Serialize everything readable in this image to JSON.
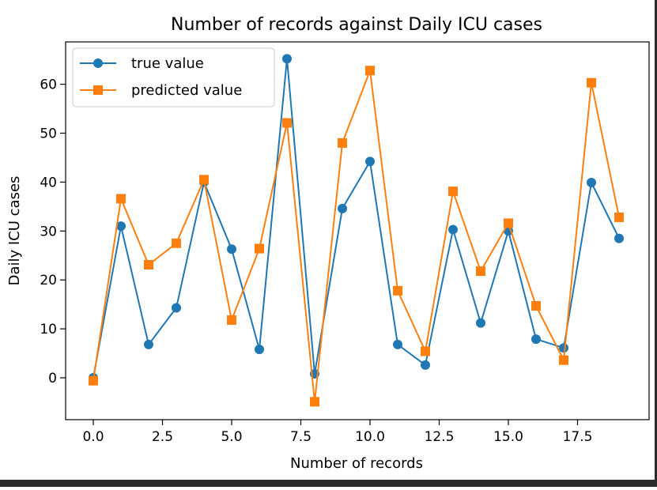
{
  "chart_data": {
    "type": "line",
    "title": "Number of records against Daily ICU cases",
    "xlabel": "Number of records",
    "ylabel": "Daily ICU cases",
    "xlim": [
      -1,
      20
    ],
    "ylim": [
      -8,
      69
    ],
    "xticks": [
      0.0,
      2.5,
      5.0,
      7.5,
      10.0,
      12.5,
      15.0,
      17.5
    ],
    "xtick_labels": [
      "0.0",
      "2.5",
      "5.0",
      "7.5",
      "10.0",
      "12.5",
      "15.0",
      "17.5"
    ],
    "yticks": [
      0,
      10,
      20,
      30,
      40,
      50,
      60
    ],
    "ytick_labels": [
      "0",
      "10",
      "20",
      "30",
      "40",
      "50",
      "60"
    ],
    "grid": false,
    "legend_position": "upper left",
    "x": [
      0,
      1,
      2,
      3,
      4,
      5,
      6,
      7,
      8,
      9,
      10,
      11,
      12,
      13,
      14,
      15,
      16,
      17,
      18,
      19
    ],
    "series": [
      {
        "name": "true value",
        "color": "#1f77b4",
        "marker": "circle",
        "values": [
          0.0,
          31.0,
          6.8,
          14.3,
          40.0,
          26.3,
          5.8,
          65.2,
          0.8,
          34.6,
          44.2,
          6.8,
          2.6,
          30.3,
          11.2,
          30.0,
          7.9,
          6.1,
          39.9,
          28.5
        ]
      },
      {
        "name": "predicted value",
        "color": "#ff7f0e",
        "marker": "square",
        "values": [
          -0.6,
          36.6,
          23.1,
          27.5,
          40.5,
          11.8,
          26.4,
          52.1,
          -4.9,
          48.0,
          62.8,
          17.8,
          5.4,
          38.1,
          21.8,
          31.6,
          14.7,
          3.6,
          60.3,
          32.8
        ]
      }
    ]
  }
}
